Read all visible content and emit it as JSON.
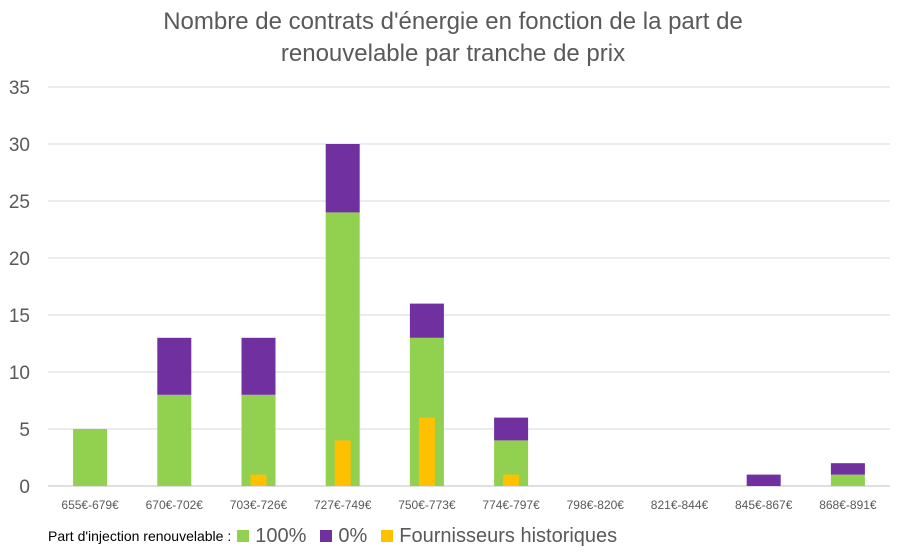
{
  "chart_data": {
    "type": "bar",
    "title_lines": [
      "Nombre de contrats d'énergie en fonction de la part de",
      "renouvelable par tranche de prix"
    ],
    "categories": [
      "655€-679€",
      "670€-702€",
      "703€-726€",
      "727€-749€",
      "750€-773€",
      "774€-797€",
      "798€-820€",
      "821€-844€",
      "845€-867€",
      "868€-891€"
    ],
    "stacked_series": [
      {
        "name": "100%",
        "color": "#92d050",
        "values": [
          5,
          8,
          8,
          24,
          13,
          4,
          0,
          0,
          0,
          1
        ]
      },
      {
        "name": "0%",
        "color": "#7030a0",
        "values": [
          0,
          5,
          5,
          6,
          3,
          2,
          0,
          0,
          1,
          1
        ]
      }
    ],
    "overlay_series": {
      "name": "Fournisseurs historiques",
      "color": "#ffc000",
      "values": [
        0,
        0,
        1,
        4,
        6,
        1,
        0,
        0,
        0,
        0
      ]
    },
    "ylim": [
      0,
      35
    ],
    "yticks": [
      "0",
      "5",
      "10",
      "15",
      "20",
      "25",
      "30",
      "35"
    ],
    "grid": true,
    "legend_position": "bottom-left"
  },
  "legend": {
    "prefix": "Part d'injection renouvelable :",
    "items": [
      {
        "label": "100%",
        "color": "#92d050"
      },
      {
        "label": "0%",
        "color": "#7030a0"
      },
      {
        "label": "Fournisseurs historiques",
        "color": "#ffc000"
      }
    ]
  }
}
